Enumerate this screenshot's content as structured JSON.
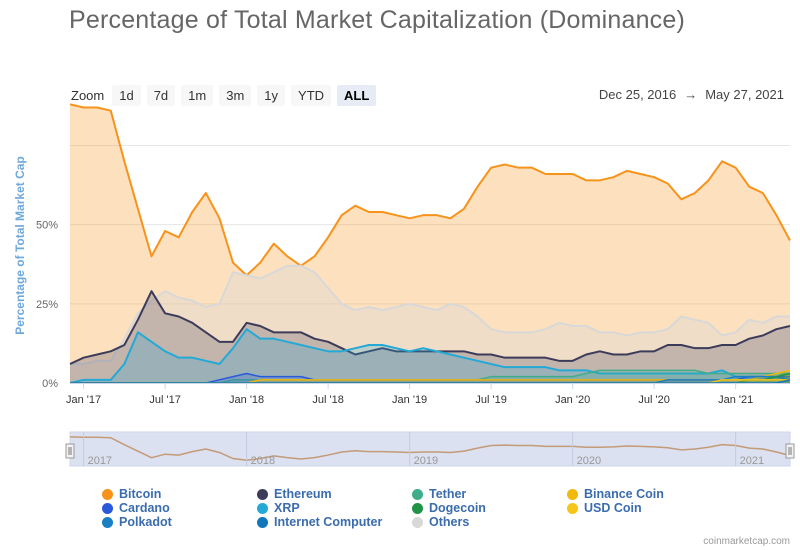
{
  "title": "Percentage of Total Market Capitalization (Dominance)",
  "zoom": {
    "label": "Zoom",
    "buttons": [
      "1d",
      "7d",
      "1m",
      "3m",
      "1y",
      "YTD",
      "ALL"
    ],
    "active": "ALL"
  },
  "range": {
    "from": "Dec 25, 2016",
    "arrow": "→",
    "to": "May 27, 2021"
  },
  "chart_data": {
    "type": "area",
    "ylabel": "Percentage of Total Market Cap",
    "ylim": [
      0,
      90
    ],
    "yticks": [
      "0%",
      "25%",
      "50%"
    ],
    "xticks": [
      "Jan '17",
      "Jul '17",
      "Jan '18",
      "Jul '18",
      "Jan '19",
      "Jul '19",
      "Jan '20",
      "Jul '20",
      "Jan '21"
    ],
    "navigator_ticks": [
      "2017",
      "2018",
      "2019",
      "2020",
      "2021"
    ],
    "x": [
      "2016-12",
      "2017-01",
      "2017-02",
      "2017-03",
      "2017-04",
      "2017-05",
      "2017-06",
      "2017-07",
      "2017-08",
      "2017-09",
      "2017-10",
      "2017-11",
      "2017-12",
      "2018-01",
      "2018-02",
      "2018-03",
      "2018-04",
      "2018-05",
      "2018-06",
      "2018-07",
      "2018-08",
      "2018-09",
      "2018-10",
      "2018-11",
      "2018-12",
      "2019-01",
      "2019-02",
      "2019-03",
      "2019-04",
      "2019-05",
      "2019-06",
      "2019-07",
      "2019-08",
      "2019-09",
      "2019-10",
      "2019-11",
      "2019-12",
      "2020-01",
      "2020-02",
      "2020-03",
      "2020-04",
      "2020-05",
      "2020-06",
      "2020-07",
      "2020-08",
      "2020-09",
      "2020-10",
      "2020-11",
      "2020-12",
      "2021-01",
      "2021-02",
      "2021-03",
      "2021-04",
      "2021-05"
    ],
    "series": [
      {
        "name": "Bitcoin",
        "color": "#f7931a",
        "values": [
          88,
          87,
          87,
          86,
          70,
          55,
          40,
          48,
          46,
          54,
          60,
          52,
          38,
          34,
          38,
          44,
          40,
          37,
          40,
          46,
          53,
          56,
          54,
          54,
          53,
          52,
          53,
          53,
          52,
          55,
          62,
          68,
          69,
          68,
          68,
          66,
          66,
          66,
          64,
          64,
          65,
          67,
          66,
          65,
          63,
          58,
          60,
          64,
          70,
          68,
          62,
          60,
          53,
          45
        ]
      },
      {
        "name": "Ethereum",
        "color": "#3c3c5a",
        "values": [
          6,
          8,
          9,
          10,
          12,
          20,
          29,
          22,
          21,
          19,
          16,
          13,
          13,
          19,
          18,
          16,
          16,
          16,
          14,
          13,
          11,
          9,
          10,
          11,
          10,
          10,
          10,
          10,
          10,
          10,
          9,
          9,
          8,
          8,
          8,
          8,
          7,
          7,
          9,
          10,
          9,
          9,
          10,
          10,
          12,
          12,
          11,
          11,
          12,
          12,
          14,
          15,
          17,
          18
        ]
      },
      {
        "name": "Tether",
        "color": "#3fad8a",
        "values": [
          0,
          0,
          0,
          0,
          0,
          0,
          0,
          0,
          0,
          0,
          0,
          0,
          1,
          1,
          1,
          1,
          1,
          1,
          1,
          1,
          1,
          1,
          1,
          1,
          1,
          1,
          1,
          1,
          1,
          1,
          1,
          2,
          2,
          2,
          2,
          2,
          2,
          2,
          3,
          4,
          4,
          4,
          4,
          4,
          4,
          4,
          4,
          3,
          3,
          3,
          3,
          3,
          3,
          3
        ]
      },
      {
        "name": "Binance Coin",
        "color": "#f0b90b",
        "values": [
          0,
          0,
          0,
          0,
          0,
          0,
          0,
          0,
          0,
          0,
          0,
          0,
          0,
          0,
          1,
          1,
          1,
          1,
          1,
          1,
          1,
          1,
          1,
          1,
          1,
          1,
          1,
          1,
          1,
          1,
          1,
          1,
          1,
          1,
          1,
          1,
          1,
          1,
          1,
          1,
          1,
          1,
          1,
          1,
          1,
          1,
          1,
          1,
          1,
          1,
          1,
          2,
          3,
          4
        ]
      },
      {
        "name": "Cardano",
        "color": "#2a5ada",
        "values": [
          0,
          0,
          0,
          0,
          0,
          0,
          0,
          0,
          0,
          0,
          0,
          1,
          2,
          3,
          2,
          2,
          2,
          2,
          1,
          1,
          1,
          1,
          1,
          1,
          1,
          1,
          1,
          1,
          1,
          1,
          1,
          1,
          1,
          1,
          1,
          1,
          1,
          1,
          1,
          1,
          1,
          1,
          1,
          1,
          1,
          1,
          1,
          1,
          1,
          1,
          2,
          2,
          2,
          2
        ]
      },
      {
        "name": "XRP",
        "color": "#23a9d6",
        "values": [
          0,
          1,
          1,
          1,
          6,
          16,
          13,
          10,
          8,
          8,
          7,
          6,
          11,
          17,
          14,
          14,
          13,
          12,
          11,
          10,
          10,
          11,
          12,
          12,
          11,
          10,
          11,
          10,
          9,
          8,
          7,
          6,
          5,
          5,
          5,
          5,
          4,
          4,
          4,
          3,
          3,
          3,
          3,
          3,
          3,
          3,
          3,
          3,
          4,
          2,
          2,
          2,
          3,
          3
        ]
      },
      {
        "name": "Dogecoin",
        "color": "#1f9446",
        "values": [
          0,
          0,
          0,
          0,
          0,
          0,
          0,
          0,
          0,
          0,
          0,
          0,
          0,
          0,
          0,
          0,
          0,
          0,
          0,
          0,
          0,
          0,
          0,
          0,
          0,
          0,
          0,
          0,
          0,
          0,
          0,
          0,
          0,
          0,
          0,
          0,
          0,
          0,
          0,
          0,
          0,
          0,
          0,
          0,
          0,
          0,
          0,
          0,
          0,
          0,
          1,
          1,
          2,
          3
        ]
      },
      {
        "name": "USD Coin",
        "color": "#f5c518",
        "values": [
          0,
          0,
          0,
          0,
          0,
          0,
          0,
          0,
          0,
          0,
          0,
          0,
          0,
          0,
          0,
          0,
          0,
          0,
          0,
          0,
          0,
          0,
          0,
          0,
          0,
          0,
          0,
          0,
          0,
          0,
          0,
          0,
          0,
          0,
          0,
          0,
          0,
          0,
          0,
          0,
          0,
          0,
          0,
          0,
          0,
          0,
          0,
          0,
          1,
          1,
          1,
          1,
          1,
          1
        ]
      },
      {
        "name": "Polkadot",
        "color": "#1b7fc4",
        "values": [
          0,
          0,
          0,
          0,
          0,
          0,
          0,
          0,
          0,
          0,
          0,
          0,
          0,
          0,
          0,
          0,
          0,
          0,
          0,
          0,
          0,
          0,
          0,
          0,
          0,
          0,
          0,
          0,
          0,
          0,
          0,
          0,
          0,
          0,
          0,
          0,
          0,
          0,
          0,
          0,
          0,
          0,
          0,
          0,
          1,
          1,
          1,
          1,
          1,
          2,
          2,
          2,
          2,
          1
        ]
      },
      {
        "name": "Internet Computer",
        "color": "#1177bb",
        "values": [
          0,
          0,
          0,
          0,
          0,
          0,
          0,
          0,
          0,
          0,
          0,
          0,
          0,
          0,
          0,
          0,
          0,
          0,
          0,
          0,
          0,
          0,
          0,
          0,
          0,
          0,
          0,
          0,
          0,
          0,
          0,
          0,
          0,
          0,
          0,
          0,
          0,
          0,
          0,
          0,
          0,
          0,
          0,
          0,
          0,
          0,
          0,
          0,
          0,
          0,
          0,
          0,
          0,
          1
        ]
      },
      {
        "name": "Others",
        "color": "#d8d8d8",
        "values": [
          6,
          6,
          7,
          7,
          14,
          22,
          26,
          29,
          27,
          26,
          24,
          25,
          35,
          34,
          33,
          35,
          37,
          37,
          35,
          30,
          25,
          23,
          24,
          23,
          24,
          25,
          24,
          23,
          25,
          24,
          21,
          17,
          16,
          16,
          16,
          17,
          19,
          18,
          18,
          16,
          16,
          15,
          16,
          16,
          17,
          21,
          20,
          19,
          15,
          16,
          20,
          19,
          21,
          21
        ]
      }
    ]
  },
  "credits": "coinmarketcap.com"
}
